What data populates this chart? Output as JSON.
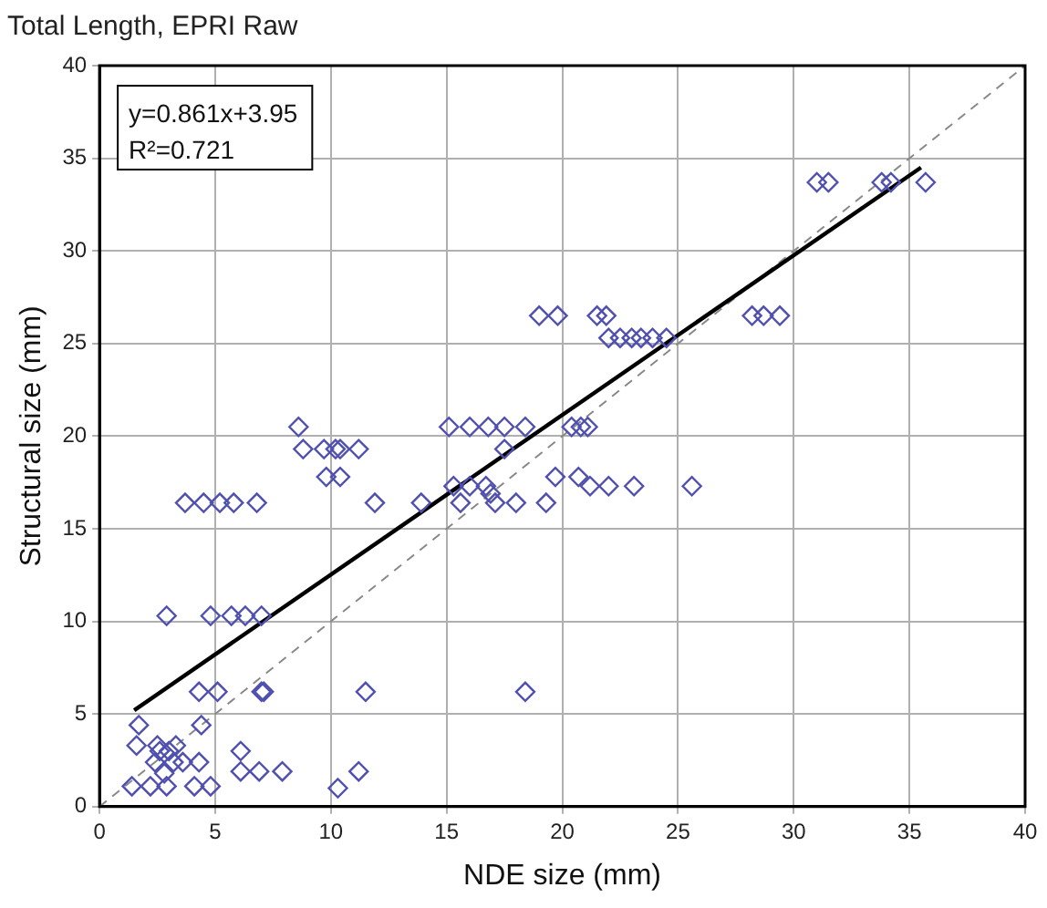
{
  "chart_data": {
    "type": "scatter",
    "title": "Total Length, EPRI Raw",
    "xlabel": "NDE size (mm)",
    "ylabel": "Structural size (mm)",
    "xlim": [
      0,
      40
    ],
    "ylim": [
      0,
      40
    ],
    "xticks": [
      0,
      5,
      10,
      15,
      20,
      25,
      30,
      35,
      40
    ],
    "yticks": [
      0,
      5,
      10,
      15,
      20,
      25,
      30,
      35,
      40
    ],
    "grid": true,
    "marker": "diamond",
    "annotations": [
      "y=0.861x+3.95",
      "R²=0.721"
    ],
    "series": [
      {
        "color": "#5050b0",
        "x": [
          1.7,
          1.6,
          2.5,
          2.6,
          3.3,
          6.1,
          2.4,
          3.2,
          3.6,
          4.3,
          6.1,
          6.9,
          7.9,
          11.2,
          1.4,
          2.2,
          2.9,
          4.1,
          4.8,
          10.3,
          4.4,
          3.0,
          2.8,
          4.3,
          5.1,
          7.0,
          7.1,
          11.5,
          18.4,
          2.9,
          4.8,
          5.7,
          6.3,
          7.0,
          3.7,
          4.5,
          5.2,
          5.8,
          6.8,
          11.9,
          13.9,
          15.6,
          17.1,
          18.0,
          19.3,
          15.3,
          16.0,
          16.7,
          21.2,
          22.0,
          23.1,
          25.6,
          9.8,
          10.4,
          19.7,
          20.7,
          16.9,
          8.8,
          9.7,
          10.2,
          10.4,
          11.2,
          17.5,
          8.6,
          15.1,
          16.0,
          16.8,
          17.5,
          18.4,
          20.4,
          21.1,
          20.8,
          19.0,
          19.8,
          21.5,
          21.9,
          28.2,
          28.7,
          29.4,
          22.0,
          22.5,
          23.0,
          23.4,
          23.9,
          24.5,
          31.0,
          31.5,
          33.8,
          34.2,
          35.7
        ],
        "values": [
          4.4,
          3.3,
          3.3,
          3.0,
          3.3,
          3.0,
          2.4,
          2.4,
          2.4,
          2.4,
          1.9,
          1.9,
          1.9,
          1.9,
          1.1,
          1.1,
          1.1,
          1.1,
          1.1,
          1.0,
          4.4,
          3.0,
          1.8,
          6.2,
          6.2,
          6.2,
          6.2,
          6.2,
          6.2,
          10.3,
          10.3,
          10.3,
          10.3,
          10.3,
          16.4,
          16.4,
          16.4,
          16.4,
          16.4,
          16.4,
          16.4,
          16.4,
          16.4,
          16.4,
          16.4,
          17.3,
          17.3,
          17.3,
          17.3,
          17.3,
          17.3,
          17.3,
          17.8,
          17.8,
          17.8,
          17.8,
          16.9,
          19.3,
          19.3,
          19.3,
          19.3,
          19.3,
          19.3,
          20.5,
          20.5,
          20.5,
          20.5,
          20.5,
          20.5,
          20.5,
          20.5,
          20.5,
          26.5,
          26.5,
          26.5,
          26.5,
          26.5,
          26.5,
          26.5,
          25.3,
          25.3,
          25.3,
          25.3,
          25.3,
          25.3,
          33.7,
          33.7,
          33.7,
          33.7,
          33.7
        ]
      },
      {
        "type": "line",
        "color": "#000000",
        "marker": "none",
        "x": [
          1.5,
          35.5
        ],
        "values": [
          5.2,
          34.5
        ]
      },
      {
        "type": "line",
        "color": "#888888",
        "marker": "none",
        "line_style": "dashed",
        "x": [
          0,
          40
        ],
        "values": [
          0,
          40
        ]
      }
    ]
  }
}
